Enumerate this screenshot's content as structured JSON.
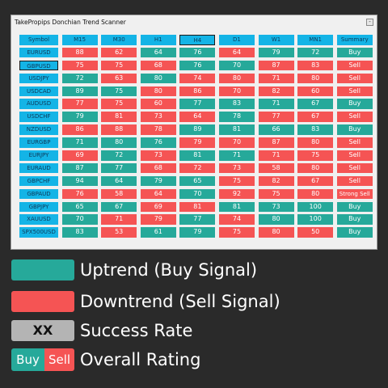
{
  "window": {
    "title": "TakePropips Donchian Trend Scanner",
    "min_label": "-"
  },
  "headers": [
    "Symbol",
    "M15",
    "M30",
    "H1",
    "H4",
    "D1",
    "W1",
    "MN1",
    "Summary"
  ],
  "rows": [
    {
      "symbol": "EURUSD",
      "values": [
        88,
        62,
        64,
        76,
        64,
        79,
        72
      ],
      "summary": "Buy",
      "colors": [
        "r",
        "r",
        "g",
        "g",
        "r",
        "g",
        "g",
        "g"
      ]
    },
    {
      "symbol": "GBPUSD",
      "values": [
        75,
        75,
        68,
        76,
        70,
        87,
        83
      ],
      "summary": "Sell",
      "colors": [
        "r",
        "r",
        "r",
        "g",
        "g",
        "r",
        "r",
        "r"
      ]
    },
    {
      "symbol": "USDJPY",
      "values": [
        72,
        63,
        80,
        74,
        80,
        71,
        80
      ],
      "summary": "Sell",
      "colors": [
        "g",
        "r",
        "g",
        "r",
        "r",
        "r",
        "r",
        "r"
      ]
    },
    {
      "symbol": "USDCAD",
      "values": [
        89,
        75,
        80,
        86,
        70,
        82,
        60
      ],
      "summary": "Sell",
      "colors": [
        "g",
        "g",
        "r",
        "r",
        "r",
        "r",
        "r",
        "r"
      ]
    },
    {
      "symbol": "AUDUSD",
      "values": [
        77,
        75,
        60,
        77,
        83,
        71,
        67
      ],
      "summary": "Buy",
      "colors": [
        "r",
        "r",
        "r",
        "g",
        "g",
        "g",
        "g",
        "g"
      ]
    },
    {
      "symbol": "USDCHF",
      "values": [
        79,
        81,
        73,
        64,
        78,
        77,
        67
      ],
      "summary": "Sell",
      "colors": [
        "g",
        "r",
        "r",
        "r",
        "g",
        "r",
        "r",
        "r"
      ]
    },
    {
      "symbol": "NZDUSD",
      "values": [
        86,
        88,
        78,
        89,
        81,
        66,
        83
      ],
      "summary": "Buy",
      "colors": [
        "r",
        "r",
        "r",
        "g",
        "g",
        "g",
        "g",
        "g"
      ]
    },
    {
      "symbol": "EURGBP",
      "values": [
        71,
        80,
        76,
        79,
        70,
        87,
        80
      ],
      "summary": "Sell",
      "colors": [
        "g",
        "g",
        "g",
        "r",
        "r",
        "r",
        "r",
        "r"
      ]
    },
    {
      "symbol": "EURJPY",
      "values": [
        69,
        72,
        73,
        81,
        71,
        71,
        75
      ],
      "summary": "Sell",
      "colors": [
        "r",
        "g",
        "r",
        "g",
        "g",
        "r",
        "r",
        "r"
      ]
    },
    {
      "symbol": "EURAUD",
      "values": [
        87,
        77,
        68,
        72,
        73,
        58,
        80
      ],
      "summary": "Sell",
      "colors": [
        "g",
        "g",
        "r",
        "r",
        "r",
        "r",
        "r",
        "r"
      ]
    },
    {
      "symbol": "GBPCHF",
      "values": [
        94,
        64,
        79,
        65,
        75,
        82,
        67
      ],
      "summary": "Sell",
      "colors": [
        "g",
        "g",
        "g",
        "g",
        "r",
        "r",
        "r",
        "r"
      ]
    },
    {
      "symbol": "GBPAUD",
      "values": [
        76,
        58,
        64,
        70,
        92,
        75,
        80
      ],
      "summary": "Strong Sell",
      "colors": [
        "r",
        "r",
        "r",
        "g",
        "r",
        "r",
        "r",
        "r"
      ]
    },
    {
      "symbol": "GBPJPY",
      "values": [
        65,
        67,
        69,
        81,
        81,
        73,
        100
      ],
      "summary": "Buy",
      "colors": [
        "g",
        "g",
        "r",
        "r",
        "g",
        "g",
        "g",
        "g"
      ]
    },
    {
      "symbol": "XAUUSD",
      "values": [
        70,
        71,
        79,
        77,
        74,
        80,
        100
      ],
      "summary": "Buy",
      "colors": [
        "g",
        "r",
        "r",
        "g",
        "r",
        "g",
        "g",
        "g"
      ]
    },
    {
      "symbol": "SPX500USD",
      "values": [
        83,
        53,
        61,
        79,
        75,
        80,
        50
      ],
      "summary": "Buy",
      "colors": [
        "g",
        "r",
        "g",
        "g",
        "r",
        "r",
        "r",
        "g"
      ]
    }
  ],
  "legend": {
    "uptrend": "Uptrend (Buy Signal)",
    "downtrend": "Downtrend (Sell Signal)",
    "rate_sample": "XX",
    "rate": "Success Rate",
    "buy": "Buy",
    "sell": "Sell",
    "rating": "Overall Rating"
  },
  "colors": {
    "buy": "#26a99a",
    "sell": "#f55454",
    "header": "#14b4e6",
    "neutral": "#b4b4b4"
  }
}
